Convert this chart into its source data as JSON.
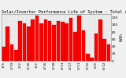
{
  "title": "Solar/Inverter Performance Life of System - Total (Weekly)",
  "ylabel": "kWh",
  "bar_color": "#ff0000",
  "edge_color": "#880000",
  "bg_color": "#f0f0f0",
  "plot_bg": "#e8e8e8",
  "grid_color": "#ffffff",
  "values": [
    38,
    95,
    45,
    30,
    110,
    105,
    95,
    115,
    125,
    105,
    115,
    110,
    100,
    110,
    108,
    105,
    120,
    80,
    125,
    85,
    20,
    8,
    75,
    115,
    60,
    45
  ],
  "xlabels": [
    "1/5",
    "",
    "1/19",
    "",
    "2/2",
    "",
    "2/16",
    "",
    "3/2",
    "",
    "3/16",
    "",
    "3/30",
    "",
    "4/13",
    "",
    "4/27",
    "",
    "5/11",
    "",
    "5/25",
    "",
    "6/8",
    "",
    "6/22",
    ""
  ],
  "ylim": [
    0,
    130
  ],
  "yticks": [
    0,
    20,
    40,
    60,
    80,
    100,
    120
  ],
  "ytick_labels": [
    "0",
    "20",
    "40",
    "60",
    "80",
    "100",
    "120"
  ],
  "title_fontsize": 3.8,
  "tick_fontsize": 3.2,
  "ylabel_fontsize": 3.5,
  "figsize": [
    1.6,
    1.0
  ],
  "dpi": 100
}
